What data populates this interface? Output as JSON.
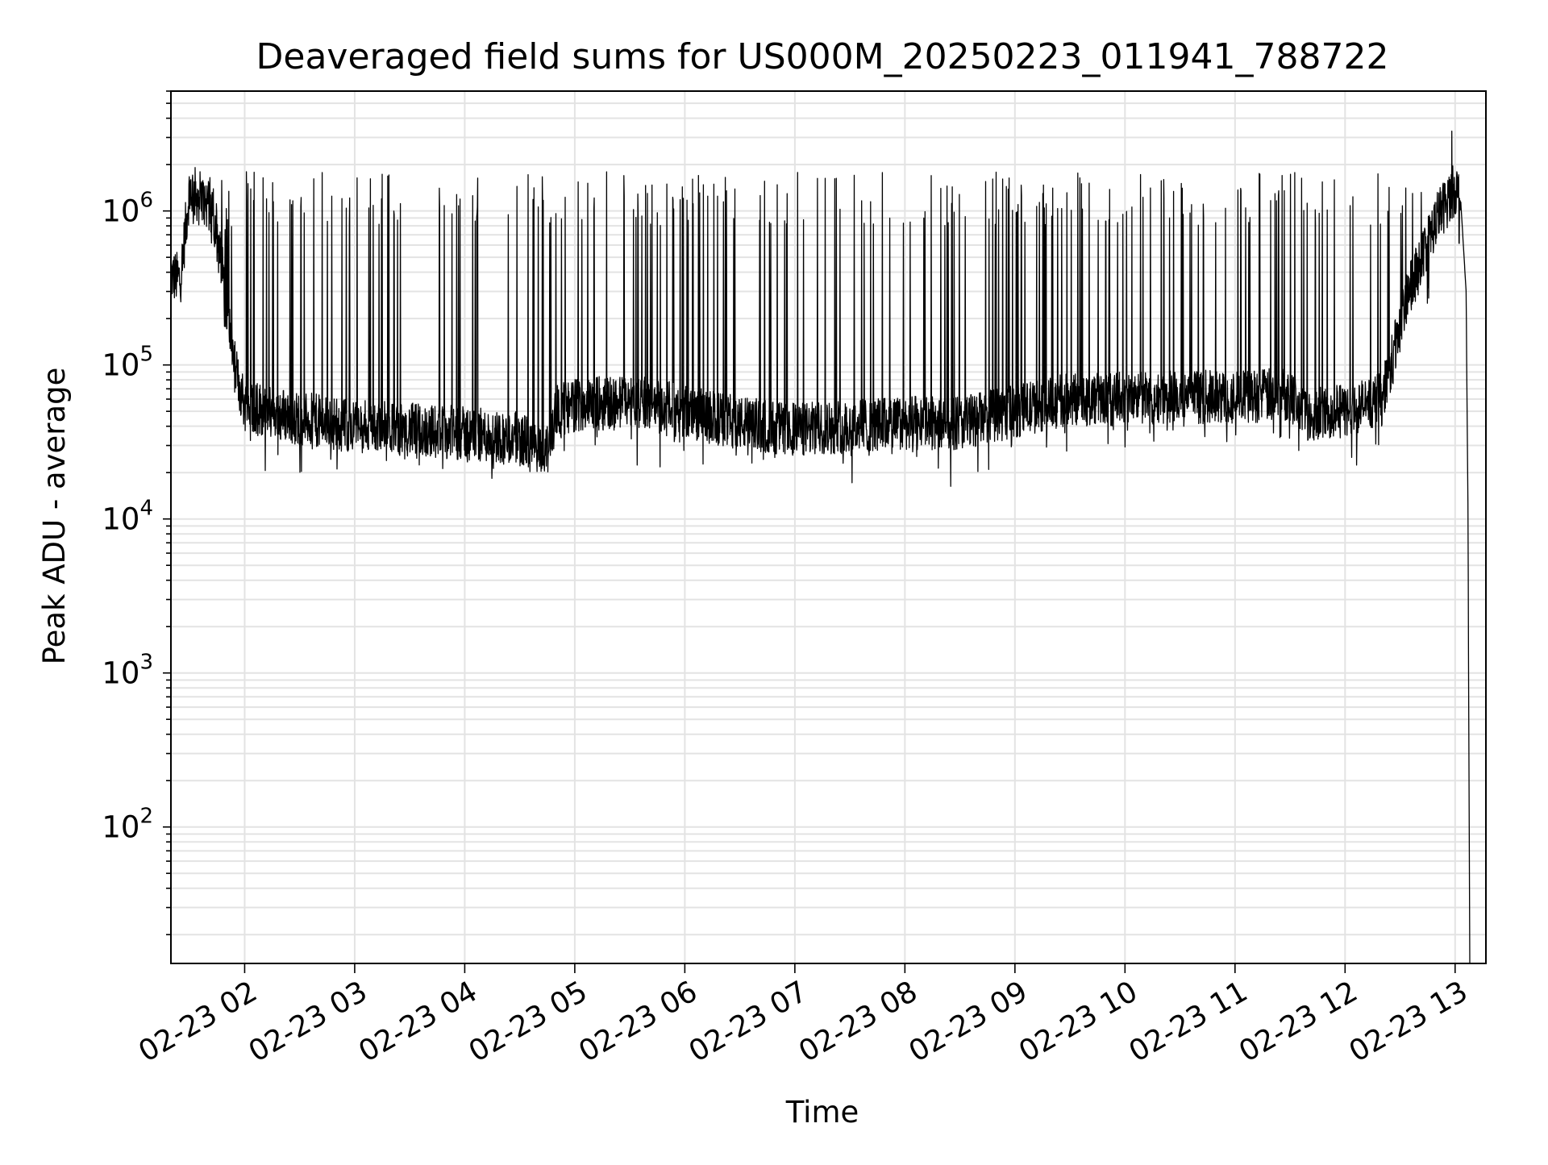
{
  "chart_data": {
    "type": "line",
    "title": "Deaveraged field sums for US000M_20250223_011941_788722",
    "xlabel": "Time",
    "ylabel": "Peak ADU - average",
    "yscale": "log",
    "grid": true,
    "ylim": [
      13,
      6000000
    ],
    "xlim_hours": [
      1.33,
      13.28
    ],
    "xticks": [
      {
        "hour": 2,
        "label": "02-23 02"
      },
      {
        "hour": 3,
        "label": "02-23 03"
      },
      {
        "hour": 4,
        "label": "02-23 04"
      },
      {
        "hour": 5,
        "label": "02-23 05"
      },
      {
        "hour": 6,
        "label": "02-23 06"
      },
      {
        "hour": 7,
        "label": "02-23 07"
      },
      {
        "hour": 8,
        "label": "02-23 08"
      },
      {
        "hour": 9,
        "label": "02-23 09"
      },
      {
        "hour": 10,
        "label": "02-23 10"
      },
      {
        "hour": 11,
        "label": "02-23 11"
      },
      {
        "hour": 12,
        "label": "02-23 12"
      },
      {
        "hour": 13,
        "label": "02-23 13"
      }
    ],
    "yticks": [
      {
        "value": 100,
        "base": "10",
        "exp": "2"
      },
      {
        "value": 1000,
        "base": "10",
        "exp": "3"
      },
      {
        "value": 10000,
        "base": "10",
        "exp": "4"
      },
      {
        "value": 100000,
        "base": "10",
        "exp": "5"
      },
      {
        "value": 1000000,
        "base": "10",
        "exp": "6"
      }
    ],
    "series": [
      {
        "color": "#000000",
        "baseline": [
          {
            "time": "01:20",
            "value": 380000
          },
          {
            "time": "01:25",
            "value": 360000
          },
          {
            "time": "01:30",
            "value": 1400000
          },
          {
            "time": "01:36",
            "value": 1200000
          },
          {
            "time": "01:42",
            "value": 1100000
          },
          {
            "time": "01:48",
            "value": 400000
          },
          {
            "time": "01:55",
            "value": 90000
          },
          {
            "time": "02:00",
            "value": 55000
          },
          {
            "time": "02:30",
            "value": 45000
          },
          {
            "time": "03:00",
            "value": 40000
          },
          {
            "time": "03:30",
            "value": 38000
          },
          {
            "time": "04:00",
            "value": 36000
          },
          {
            "time": "04:30",
            "value": 33000
          },
          {
            "time": "04:45",
            "value": 28000
          },
          {
            "time": "04:50",
            "value": 50000
          },
          {
            "time": "05:00",
            "value": 55000
          },
          {
            "time": "05:30",
            "value": 58000
          },
          {
            "time": "06:00",
            "value": 50000
          },
          {
            "time": "06:30",
            "value": 42000
          },
          {
            "time": "07:00",
            "value": 38000
          },
          {
            "time": "07:30",
            "value": 40000
          },
          {
            "time": "08:00",
            "value": 42000
          },
          {
            "time": "08:30",
            "value": 42000
          },
          {
            "time": "09:00",
            "value": 50000
          },
          {
            "time": "09:30",
            "value": 60000
          },
          {
            "time": "10:00",
            "value": 60000
          },
          {
            "time": "10:30",
            "value": 62000
          },
          {
            "time": "11:00",
            "value": 62000
          },
          {
            "time": "11:30",
            "value": 65000
          },
          {
            "time": "11:40",
            "value": 48000
          },
          {
            "time": "12:00",
            "value": 50000
          },
          {
            "time": "12:20",
            "value": 60000
          },
          {
            "time": "12:35",
            "value": 300000
          },
          {
            "time": "12:50",
            "value": 900000
          },
          {
            "time": "13:00",
            "value": 1400000
          },
          {
            "time": "13:03",
            "value": 1200000
          },
          {
            "time": "13:06",
            "value": 300000
          },
          {
            "time": "13:07",
            "value": 12000
          },
          {
            "time": "13:08",
            "value": 13
          }
        ],
        "spike_peak": 1800000,
        "spike_max": 3300000
      }
    ]
  }
}
